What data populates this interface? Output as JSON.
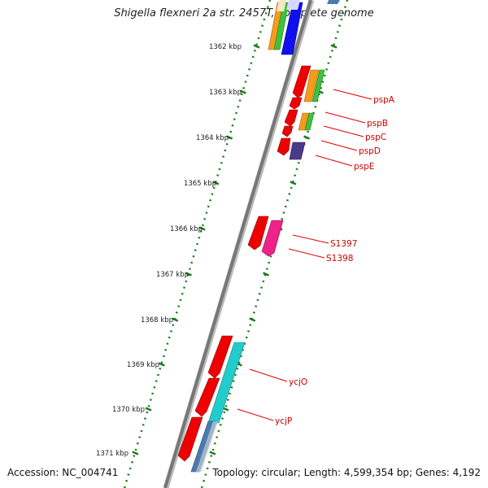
{
  "title": "Shigella flexneri 2a str. 2457T, complete genome",
  "accession": "Accession: NC_004741",
  "summary": "Topology: circular; Length: 4,599,354 bp; Genes: 4,192",
  "ruler_labels": [
    "1362 kbp",
    "1363 kbp",
    "1364 kbp",
    "1365 kbp",
    "1366 kbp",
    "1367 kbp",
    "1368 kbp",
    "1369 kbp",
    "1370 kbp",
    "1371 kbp"
  ],
  "gene_labels": [
    "pspA",
    "pspB",
    "pspC",
    "pspD",
    "pspE",
    "S1397",
    "S1398",
    "ycjO",
    "ycjP"
  ],
  "colors": {
    "backbone": "#808080",
    "ruler": "#1a7a1a",
    "gene_red": "#ee0000",
    "label_red": "#cc0000",
    "orange": "#f59a1a",
    "green": "#3ec23e",
    "blue": "#1010ee",
    "cyan": "#22cccc",
    "pink": "#ee2288",
    "purple": "#4a3a8a",
    "steel": "#4a7ab0"
  }
}
